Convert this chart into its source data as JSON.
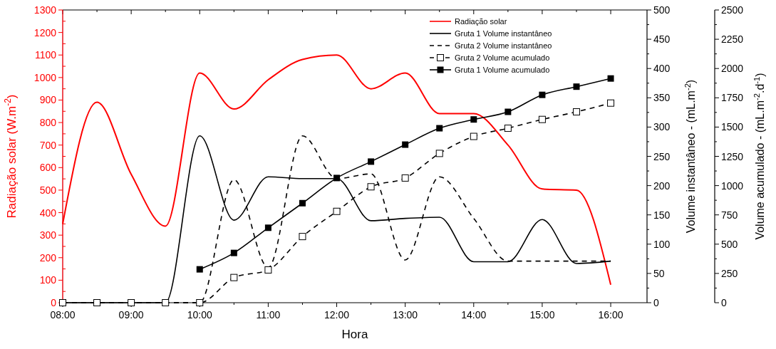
{
  "chart_data": {
    "type": "line",
    "x": [
      8,
      8.5,
      9,
      9.5,
      10,
      10.5,
      11,
      11.5,
      12,
      12.5,
      13,
      13.5,
      14,
      14.5,
      15,
      15.5,
      16
    ],
    "xlim": [
      8,
      16.53
    ],
    "xticks": [
      {
        "value": 8,
        "label": "08:00"
      },
      {
        "value": 9,
        "label": "09:00"
      },
      {
        "value": 10,
        "label": "10:00"
      },
      {
        "value": 11,
        "label": "11:00"
      },
      {
        "value": 12,
        "label": "12:00"
      },
      {
        "value": 13,
        "label": "13:00"
      },
      {
        "value": 14,
        "label": "14:00"
      },
      {
        "value": 15,
        "label": "15:00"
      },
      {
        "value": 16,
        "label": "16:00"
      }
    ],
    "xlabel": "Hora",
    "ylabel": "Radiação solar (W.m$^{-2}$)",
    "ylim": [
      0,
      1300
    ],
    "yticks": [
      0,
      100,
      200,
      300,
      400,
      500,
      600,
      700,
      800,
      900,
      1000,
      1100,
      1200,
      1300
    ],
    "y2label": "Volume instantâneo - (mL.m$^{-2}$)",
    "y2lim": [
      0,
      500
    ],
    "y2ticks": [
      0,
      50,
      100,
      150,
      200,
      250,
      300,
      350,
      400,
      450,
      500
    ],
    "y3label": "Volume acumulado - (mL.m$^{-2}$.d$^{-1}$)",
    "y3lim": [
      0,
      2500
    ],
    "y3ticks": [
      0,
      250,
      500,
      750,
      1000,
      1250,
      1500,
      1750,
      2000,
      2250,
      2500
    ],
    "legend": "top right",
    "grid": false,
    "series": [
      {
        "name": "Radiação solar",
        "color": "#ff0000",
        "marker": "none",
        "line_style": "solid",
        "values": [
          350,
          890,
          570,
          340,
          1020,
          860,
          990,
          1080,
          1100,
          950,
          1020,
          840,
          840,
          700,
          505,
          500,
          80
        ]
      },
      {
        "name": "Gruta 1 Volume instantâneo",
        "color": "#000000",
        "axis": "y2",
        "marker": "none",
        "line_style": "solid",
        "values": [
          0,
          0,
          0,
          0,
          285,
          141,
          215,
          212,
          212,
          140,
          144,
          146,
          70,
          70,
          142,
          67,
          71
        ]
      },
      {
        "name": "Gruta 2 Volume instantâneo",
        "color": "#000000",
        "axis": "y2",
        "marker": "none",
        "line_style": "dashed",
        "values": [
          0,
          0,
          0,
          0,
          0,
          210,
          60,
          285,
          212,
          220,
          73,
          215,
          144,
          71,
          71,
          71,
          71
        ]
      },
      {
        "name": "Gruta 2 Volume acumulado",
        "color": "#000000",
        "axis": "y3",
        "marker": "square_open",
        "line_style": "dashed",
        "values": [
          0,
          0,
          0,
          0,
          0,
          215,
          280,
          565,
          780,
          990,
          1065,
          1275,
          1420,
          1490,
          1565,
          1630,
          1705
        ]
      },
      {
        "name": "Gruta 1 Volume acumulado",
        "color": "#000000",
        "axis": "y3",
        "marker": "square",
        "line_style": "solid",
        "values": [
          null,
          null,
          null,
          null,
          285,
          425,
          640,
          850,
          1065,
          1205,
          1350,
          1490,
          1565,
          1630,
          1775,
          1845,
          1915
        ]
      }
    ]
  }
}
